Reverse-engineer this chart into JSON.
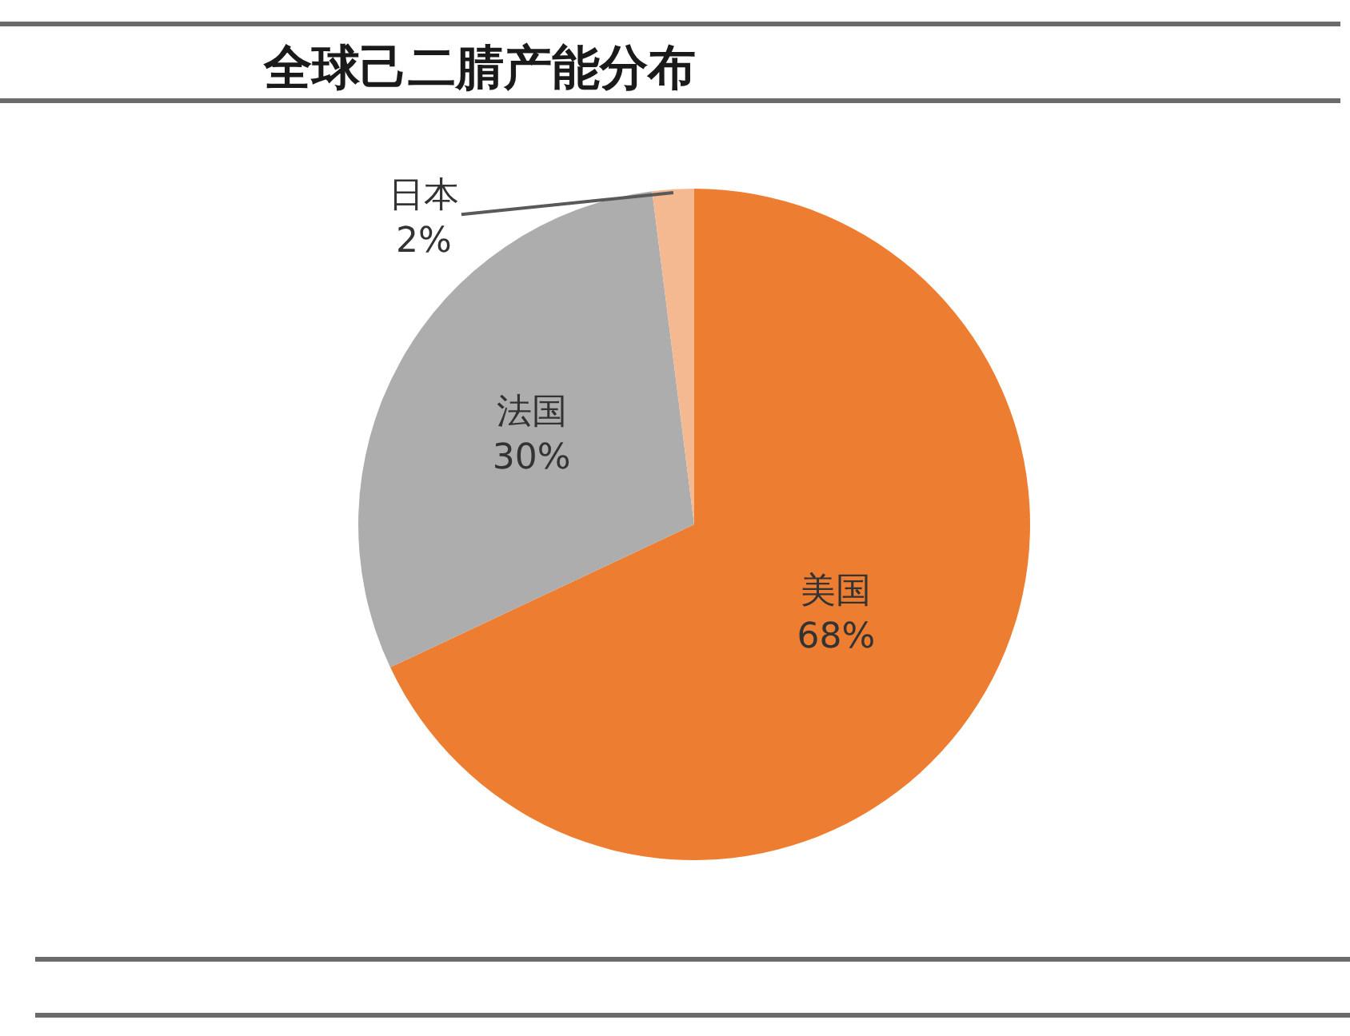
{
  "chart_data": {
    "type": "pie",
    "title": "全球己二腈产能分布",
    "categories": [
      "美国",
      "法国",
      "日本"
    ],
    "values": [
      68,
      30,
      2
    ],
    "colors": [
      "#ed7d31",
      "#adadad",
      "#f4b990"
    ],
    "value_labels": [
      "68%",
      "30%",
      "2%"
    ],
    "legend": false
  }
}
